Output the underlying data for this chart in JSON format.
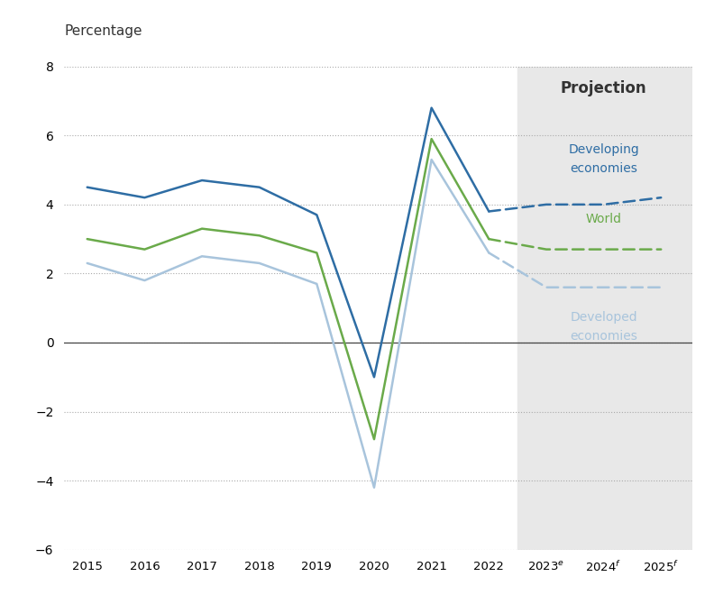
{
  "years_historical": [
    2015,
    2016,
    2017,
    2018,
    2019,
    2020,
    2021,
    2022
  ],
  "years_projection": [
    2022,
    2023,
    2024,
    2025
  ],
  "developing_hist": [
    4.5,
    4.2,
    4.7,
    4.5,
    3.7,
    -1.0,
    6.8,
    3.8
  ],
  "developing_proj": [
    3.8,
    4.0,
    4.0,
    4.2
  ],
  "world_hist": [
    3.0,
    2.7,
    3.3,
    3.1,
    2.6,
    -2.8,
    5.9,
    3.0
  ],
  "world_proj": [
    3.0,
    2.7,
    2.7,
    2.7
  ],
  "developed_hist": [
    2.3,
    1.8,
    2.5,
    2.3,
    1.7,
    -4.2,
    5.3,
    2.6
  ],
  "developed_proj": [
    2.6,
    1.6,
    1.6,
    1.6
  ],
  "color_developing": "#2e6da4",
  "color_world": "#6aaa4a",
  "color_developed": "#a8c4dc",
  "projection_bg": "#e8e8e8",
  "projection_start_x": 2022.5,
  "ylabel": "Percentage",
  "ylim": [
    -6,
    8
  ],
  "yticks": [
    -6,
    -4,
    -2,
    0,
    2,
    4,
    6,
    8
  ],
  "projection_label": "Projection",
  "label_developing_1": "Developing",
  "label_developing_2": "economies",
  "label_world": "World",
  "label_developed_1": "Developed",
  "label_developed_2": "economies",
  "xlim_left": 2014.6,
  "xlim_right": 2025.55,
  "xtick_positions": [
    2015,
    2016,
    2017,
    2018,
    2019,
    2020,
    2021,
    2022,
    2023,
    2024,
    2025
  ],
  "xtick_labels": [
    "2015",
    "2016",
    "2017",
    "2018",
    "2019",
    "2020",
    "2021",
    "2022",
    "2023$^{e}$",
    "2024$^{f}$",
    "2025$^{f}$"
  ]
}
